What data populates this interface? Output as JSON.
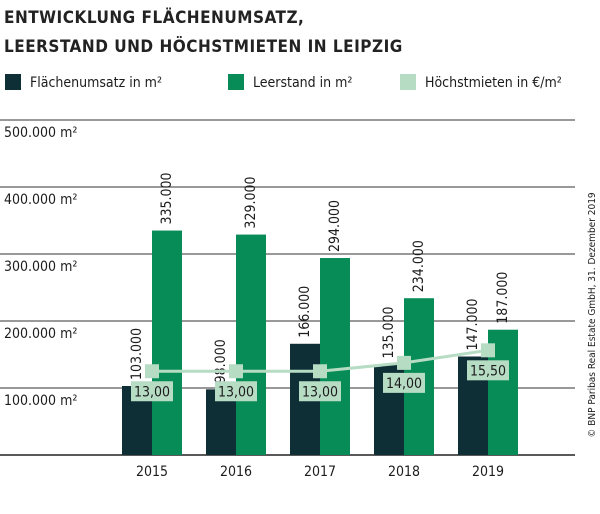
{
  "chart_data": {
    "type": "bar",
    "title": [
      "ENTWICKLUNG FLÄCHENUMSATZ,",
      "LEERSTAND UND HÖCHSTMIETEN IN LEIPZIG"
    ],
    "source": "© BNP Paribas Real Estate GmbH, 31. Dezember 2019",
    "categories": [
      "2015",
      "2016",
      "2017",
      "2018",
      "2019"
    ],
    "series": [
      {
        "name": "Flächenumsatz in m²",
        "color": "#0f2f36",
        "values": [
          103000,
          98000,
          166000,
          135000,
          147000
        ],
        "value_labels": [
          "103.000",
          "98.000",
          "166.000",
          "135.000",
          "147.000"
        ]
      },
      {
        "name": "Leerstand in m²",
        "color": "#078c57",
        "values": [
          335000,
          329000,
          294000,
          234000,
          187000
        ],
        "value_labels": [
          "335.000",
          "329.000",
          "294.000",
          "234.000",
          "187.000"
        ]
      },
      {
        "name": "Höchstmieten in €/m²",
        "color": "#b7dcc4",
        "type": "line",
        "axis": "y2",
        "values": [
          13,
          13,
          13,
          14,
          15.5
        ],
        "value_labels": [
          "13,00",
          "13,00",
          "13,00",
          "14,00",
          "15,50"
        ]
      }
    ],
    "ylim": [
      0,
      500000
    ],
    "yticks": [
      {
        "value": 100000,
        "label": "100.000 m²"
      },
      {
        "value": 200000,
        "label": "200.000 m²"
      },
      {
        "value": 300000,
        "label": "300.000 m²"
      },
      {
        "value": 400000,
        "label": "400.000 m²"
      },
      {
        "value": 500000,
        "label": "500.000 m²"
      }
    ],
    "y2lim": [
      3,
      43
    ],
    "grid": true
  }
}
